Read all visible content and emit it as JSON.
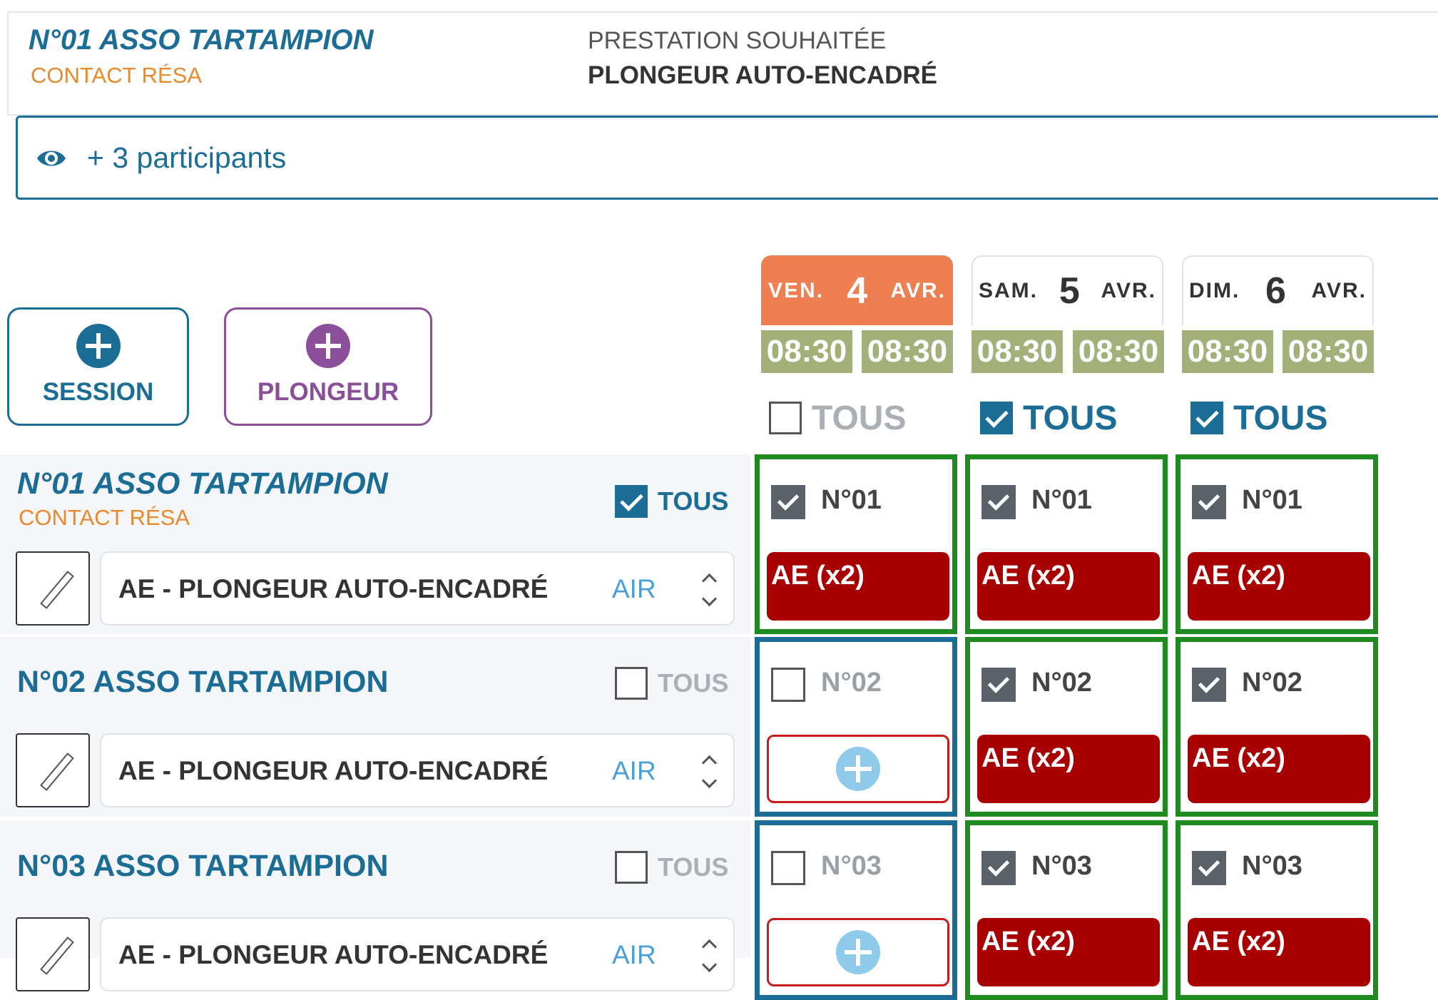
{
  "header": {
    "group_name": "N°01 ASSO TARTAMPION",
    "contact": "CONTACT RÉSA",
    "prestation_label": "PRESTATION SOUHAITÉE",
    "prestation_value": "PLONGEUR AUTO-ENCADRÉ"
  },
  "participants": {
    "label": "+ 3 participants"
  },
  "buttons": {
    "session": "SESSION",
    "plongeur": "PLONGEUR"
  },
  "colors": {
    "primary": "#1b6d96",
    "accent_orange": "#ee7f52",
    "contact_orange": "#e8892c",
    "purple": "#8b4f9a",
    "time_green": "#a3b07a",
    "cell_green": "#1f8a1f",
    "pill_red": "#a80000"
  },
  "dates": [
    {
      "day": "VEN.",
      "num": "4",
      "month": "AVR.",
      "selected": true,
      "times": [
        "08:30",
        "08:30"
      ],
      "tous": "TOUS",
      "tous_checked": false
    },
    {
      "day": "SAM.",
      "num": "5",
      "month": "AVR.",
      "selected": false,
      "times": [
        "08:30",
        "08:30"
      ],
      "tous": "TOUS",
      "tous_checked": true
    },
    {
      "day": "DIM.",
      "num": "6",
      "month": "AVR.",
      "selected": false,
      "times": [
        "08:30",
        "08:30"
      ],
      "tous": "TOUS",
      "tous_checked": true
    }
  ],
  "rows": [
    {
      "name": "N°01 ASSO TARTAMPION",
      "contact": "CONTACT RÉSA",
      "tous": "TOUS",
      "tous_checked": true,
      "select_text": "AE - PLONGEUR AUTO-ENCADRÉ",
      "select_air": "AIR",
      "cells": [
        {
          "num": "N°01",
          "checked": true,
          "pill": "AE (x2)"
        },
        {
          "num": "N°01",
          "checked": true,
          "pill": "AE (x2)"
        },
        {
          "num": "N°01",
          "checked": true,
          "pill": "AE (x2)"
        }
      ]
    },
    {
      "name": "N°02 ASSO TARTAMPION",
      "contact": "",
      "tous": "TOUS",
      "tous_checked": false,
      "select_text": "AE - PLONGEUR AUTO-ENCADRÉ",
      "select_air": "AIR",
      "cells": [
        {
          "num": "N°02",
          "checked": false,
          "pill": ""
        },
        {
          "num": "N°02",
          "checked": true,
          "pill": "AE (x2)"
        },
        {
          "num": "N°02",
          "checked": true,
          "pill": "AE (x2)"
        }
      ]
    },
    {
      "name": "N°03 ASSO TARTAMPION",
      "contact": "",
      "tous": "TOUS",
      "tous_checked": false,
      "select_text": "AE - PLONGEUR AUTO-ENCADRÉ",
      "select_air": "AIR",
      "cells": [
        {
          "num": "N°03",
          "checked": false,
          "pill": ""
        },
        {
          "num": "N°03",
          "checked": true,
          "pill": "AE (x2)"
        },
        {
          "num": "N°03",
          "checked": true,
          "pill": "AE (x2)"
        }
      ]
    }
  ]
}
